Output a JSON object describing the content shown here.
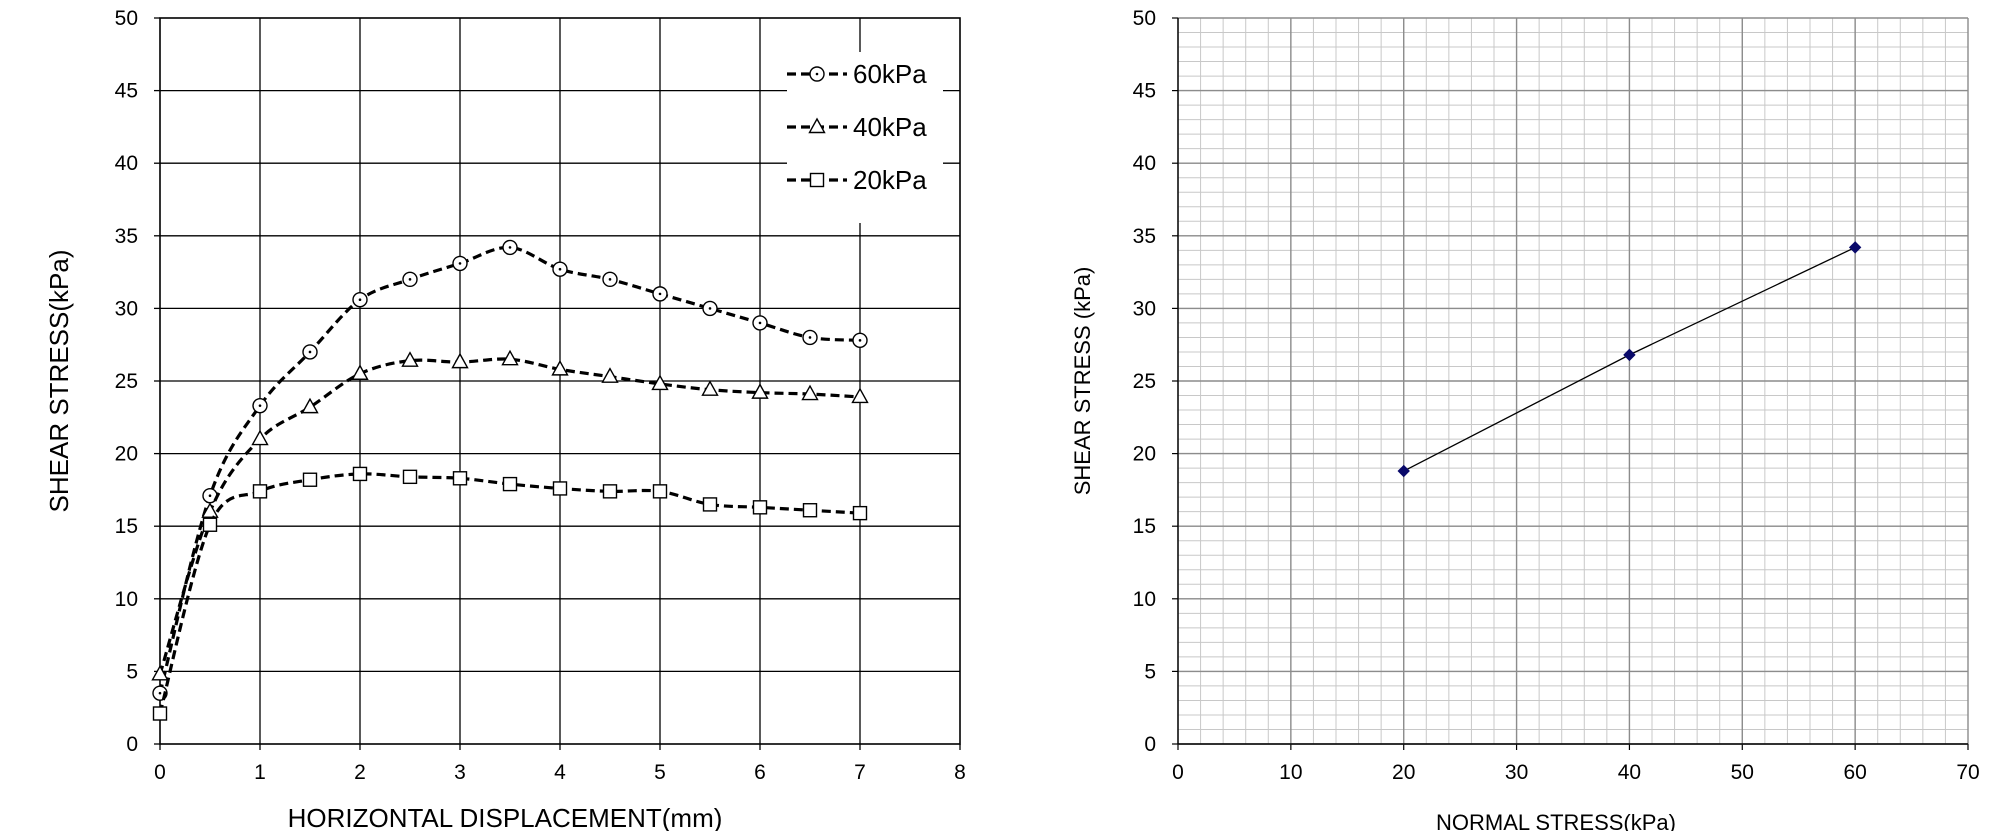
{
  "chart_data": [
    {
      "type": "line",
      "title": "",
      "xlabel": "HORIZONTAL DISPLACEMENT(mm)",
      "ylabel": "SHEAR STRESS(kPa)",
      "xlim": [
        0,
        8
      ],
      "ylim": [
        0,
        50
      ],
      "xticks": [
        0,
        1,
        2,
        3,
        4,
        5,
        6,
        7,
        8
      ],
      "yticks": [
        0,
        5,
        10,
        15,
        20,
        25,
        30,
        35,
        40,
        45,
        50
      ],
      "grid": "major",
      "legend_position": "top-right",
      "x": [
        0,
        0.5,
        1,
        1.5,
        2,
        2.5,
        3,
        3.5,
        4,
        4.5,
        5,
        5.5,
        6,
        6.5,
        7
      ],
      "series": [
        {
          "name": "60kPa",
          "marker": "circle",
          "line": "dashed",
          "values": [
            3.5,
            17.1,
            23.3,
            27.0,
            30.6,
            32.0,
            33.1,
            34.2,
            32.7,
            32.0,
            31.0,
            30.0,
            29.0,
            28.0,
            27.8
          ]
        },
        {
          "name": "40kPa",
          "marker": "triangle",
          "line": "dashed",
          "values": [
            4.8,
            16.0,
            21.0,
            23.2,
            25.5,
            26.4,
            26.3,
            26.5,
            25.8,
            25.3,
            24.8,
            24.4,
            24.2,
            24.1,
            23.9
          ]
        },
        {
          "name": "20kPa",
          "marker": "square",
          "line": "dashed",
          "values": [
            2.1,
            15.1,
            17.4,
            18.2,
            18.6,
            18.4,
            18.3,
            17.9,
            17.6,
            17.4,
            17.4,
            16.5,
            16.3,
            16.1,
            15.9
          ]
        }
      ]
    },
    {
      "type": "scatter",
      "title": "",
      "xlabel": "NORMAL STRESS(kPa)",
      "ylabel": "SHEAR STRESS (kPa)",
      "xlim": [
        0,
        70
      ],
      "ylim": [
        0,
        50
      ],
      "xticks": [
        0,
        10,
        20,
        30,
        40,
        50,
        60,
        70
      ],
      "yticks": [
        0,
        5,
        10,
        15,
        20,
        25,
        30,
        35,
        40,
        45,
        50
      ],
      "grid": "major and minor",
      "series": [
        {
          "name": "",
          "marker": "diamond",
          "line": "solid",
          "x": [
            20,
            40,
            60
          ],
          "y": [
            18.8,
            26.8,
            34.2
          ]
        }
      ]
    }
  ],
  "colors": {
    "axis": "#000000",
    "major_grid_left": "#000000",
    "major_grid_right": "#8c8c8c",
    "minor_grid_right": "#c8c8c8",
    "series_left": "#000000",
    "series_right_line": "#000000",
    "series_right_marker": "#0a0a6a"
  }
}
